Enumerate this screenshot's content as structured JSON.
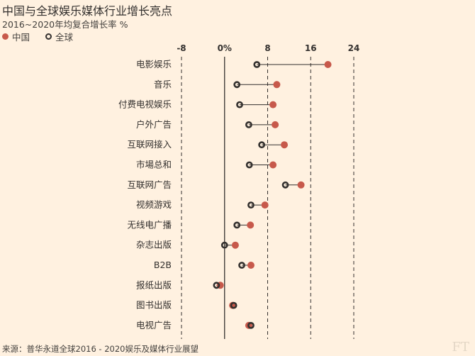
{
  "chart_data": {
    "type": "dot",
    "title": "中国与全球娱乐媒体行业增长亮点",
    "subtitle": "2016~2020年均复合增长率 %",
    "xlim": [
      -8,
      24
    ],
    "xticks": [
      -8,
      0,
      8,
      16,
      24
    ],
    "xtick_labels": [
      "-8",
      "0%",
      "8",
      "16",
      "24"
    ],
    "legend": {
      "placement": "top-left",
      "entries": [
        "中国",
        "全球"
      ]
    },
    "categories": [
      "电影娱乐",
      "音乐",
      "付费电视娱乐",
      "户外广告",
      "互联网接入",
      "市場总和",
      "互联网广告",
      "视频游戏",
      "无线电广播",
      "杂志出版",
      "B2B",
      "报纸出版",
      "图书出版",
      "电视广告"
    ],
    "series": [
      {
        "name": "中国",
        "color": "#c7594b",
        "values": [
          19.2,
          9.7,
          9.0,
          9.4,
          11.1,
          9.0,
          14.2,
          7.5,
          4.8,
          2.0,
          4.9,
          -0.8,
          1.5,
          4.5
        ]
      },
      {
        "name": "全球",
        "color": "#33302e",
        "values": [
          6.0,
          2.3,
          2.8,
          4.5,
          6.9,
          4.6,
          11.3,
          4.9,
          2.3,
          0.0,
          3.2,
          -1.5,
          1.7,
          4.9
        ]
      }
    ],
    "source": "来源：普华永道全球2016 - 2020娱乐及媒体行业展望",
    "logo": "FT"
  }
}
